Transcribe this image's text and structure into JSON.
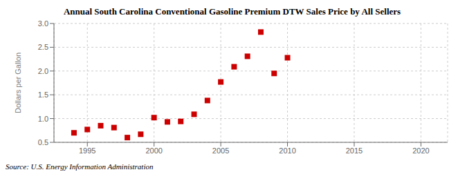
{
  "chart_data": {
    "type": "scatter",
    "title": "Annual South Carolina Conventional Gasoline Premium DTW Sales Price by All Sellers",
    "ylabel": "Dollars per Gallon",
    "annotations": [
      "Source: U.S. Energy Information Administration"
    ],
    "x": [
      1994,
      1995,
      1996,
      1997,
      1998,
      1999,
      2000,
      2001,
      2002,
      2003,
      2004,
      2005,
      2006,
      2007,
      2008,
      2009,
      2010
    ],
    "values": [
      0.7,
      0.77,
      0.85,
      0.81,
      0.6,
      0.67,
      1.02,
      0.93,
      0.94,
      1.09,
      1.38,
      1.77,
      2.09,
      2.31,
      2.82,
      1.95,
      2.28
    ],
    "color": "#cc0000",
    "marker": "square",
    "xlim": [
      1992.5,
      2022
    ],
    "ylim": [
      0.5,
      3.0
    ],
    "xticks": [
      1995,
      2000,
      2005,
      2010,
      2015,
      2020
    ],
    "yticks": [
      0.5,
      {
        "value": 1.0,
        "label": "1.0"
      },
      1.5,
      {
        "value": 2.0,
        "label": "2.0"
      },
      2.5,
      {
        "value": 3.0,
        "label": "3.0"
      }
    ],
    "grid": true
  }
}
